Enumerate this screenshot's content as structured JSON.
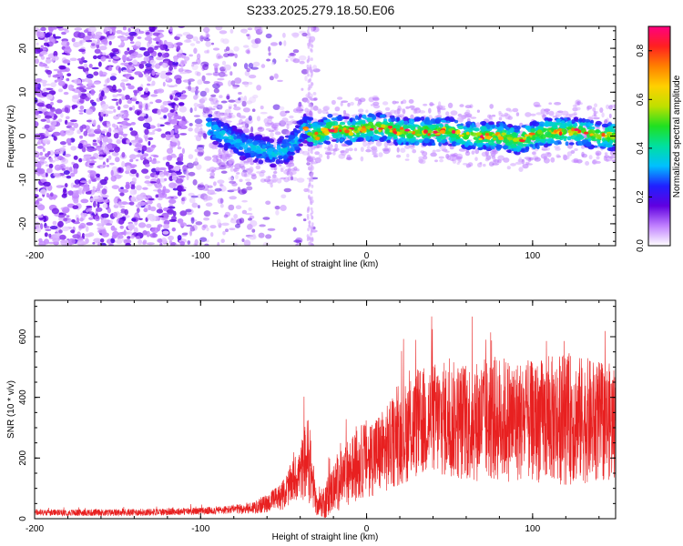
{
  "title": "S233.2025.279.18.50.E06",
  "chart_data": [
    {
      "type": "heatmap",
      "title": "S233.2025.279.18.50.E06",
      "xlabel": "Height of straight line (km)",
      "ylabel": "Frequency (Hz)",
      "xlim": [
        -200,
        150
      ],
      "ylim": [
        -25,
        25
      ],
      "x_ticks": [
        -200,
        -100,
        0,
        100
      ],
      "y_ticks": [
        -20,
        -10,
        0,
        10,
        20
      ],
      "trace": {
        "x": [
          -95,
          -85,
          -75,
          -65,
          -55,
          -48,
          -42,
          -38,
          -34,
          -30,
          -20,
          -10,
          0,
          10,
          20,
          30,
          40,
          50,
          60,
          70,
          80,
          90,
          100,
          110,
          120,
          130,
          140,
          150
        ],
        "y": [
          2,
          0,
          -2,
          -3,
          -4,
          -3,
          -1,
          2,
          1,
          0,
          2,
          1,
          2,
          2,
          1,
          1,
          1,
          1,
          0,
          0,
          0,
          -1,
          0,
          1,
          1,
          1,
          0,
          0
        ]
      },
      "colorbar": {
        "label": "Normalized spectral amplitude",
        "range": [
          0,
          0.9
        ],
        "ticks": [
          0,
          0.2,
          0.4,
          0.6,
          0.8
        ],
        "colormap": [
          "#ffffff",
          "#c080ff",
          "#6000e0",
          "#2020ff",
          "#00c0ff",
          "#00e0a0",
          "#20e020",
          "#c0e000",
          "#ffd000",
          "#ff8000",
          "#ff2020",
          "#ff0080"
        ]
      }
    },
    {
      "type": "line",
      "xlabel": "Height of straight line (km)",
      "ylabel": "SNR (10 * v/v)",
      "xlim": [
        -200,
        150
      ],
      "ylim": [
        0,
        720
      ],
      "x_ticks": [
        -200,
        -100,
        0,
        100
      ],
      "y_ticks": [
        0,
        200,
        400,
        600
      ],
      "series": [
        {
          "name": "SNR",
          "color": "#e82020",
          "envelope": {
            "x": [
              -200,
              -150,
              -100,
              -80,
              -70,
              -60,
              -50,
              -45,
              -40,
              -36,
              -33,
              -30,
              -25,
              -20,
              -15,
              -10,
              -5,
              0,
              10,
              20,
              30,
              40,
              60,
              80,
              100,
              120,
              140,
              150
            ],
            "mean": [
              20,
              20,
              25,
              30,
              35,
              50,
              80,
              120,
              150,
              200,
              140,
              40,
              60,
              100,
              130,
              160,
              180,
              200,
              220,
              270,
              310,
              330,
              320,
              330,
              320,
              330,
              320,
              320
            ],
            "amp": [
              10,
              12,
              12,
              15,
              20,
              30,
              50,
              70,
              90,
              140,
              100,
              30,
              60,
              80,
              100,
              110,
              120,
              130,
              140,
              160,
              180,
              190,
              200,
              210,
              200,
              220,
              200,
              190
            ]
          }
        }
      ]
    }
  ]
}
